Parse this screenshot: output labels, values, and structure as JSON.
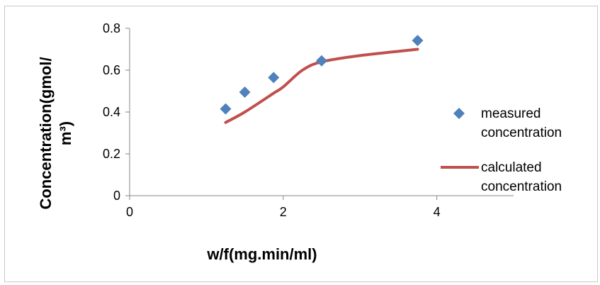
{
  "chart_data": {
    "type": "scatter",
    "xlabel": "w/f(mg.min/ml)",
    "ylabel": "Concentration(gmol/m³)",
    "ylabel_lines": [
      "Concentration(gmol/",
      "m³)"
    ],
    "xlim": [
      0,
      5
    ],
    "ylim": [
      0,
      0.8
    ],
    "x_ticks": [
      0,
      2,
      4
    ],
    "y_ticks": [
      0,
      0.2,
      0.4,
      0.6,
      0.8
    ],
    "y_tick_labels": [
      "0",
      "0.2",
      "0.4",
      "0.6",
      "0.8"
    ],
    "grid": false,
    "legend_position": "right",
    "series": [
      {
        "name": "measured concentration",
        "legend_lines": [
          "measured",
          "concentration"
        ],
        "kind": "markers",
        "marker": "diamond",
        "color": "#4f81bd",
        "x": [
          1.25,
          1.5,
          1.875,
          2.5,
          3.75
        ],
        "y": [
          0.415,
          0.495,
          0.565,
          0.645,
          0.742
        ]
      },
      {
        "name": "calculated concentration",
        "legend_lines": [
          "calculated",
          "concentration"
        ],
        "kind": "line",
        "color": "#c0504d",
        "x": [
          1.25,
          1.5,
          1.875,
          2.0,
          2.25,
          2.5,
          3.0,
          3.75
        ],
        "y": [
          0.35,
          0.4,
          0.49,
          0.52,
          0.6,
          0.64,
          0.67,
          0.7
        ]
      }
    ]
  }
}
